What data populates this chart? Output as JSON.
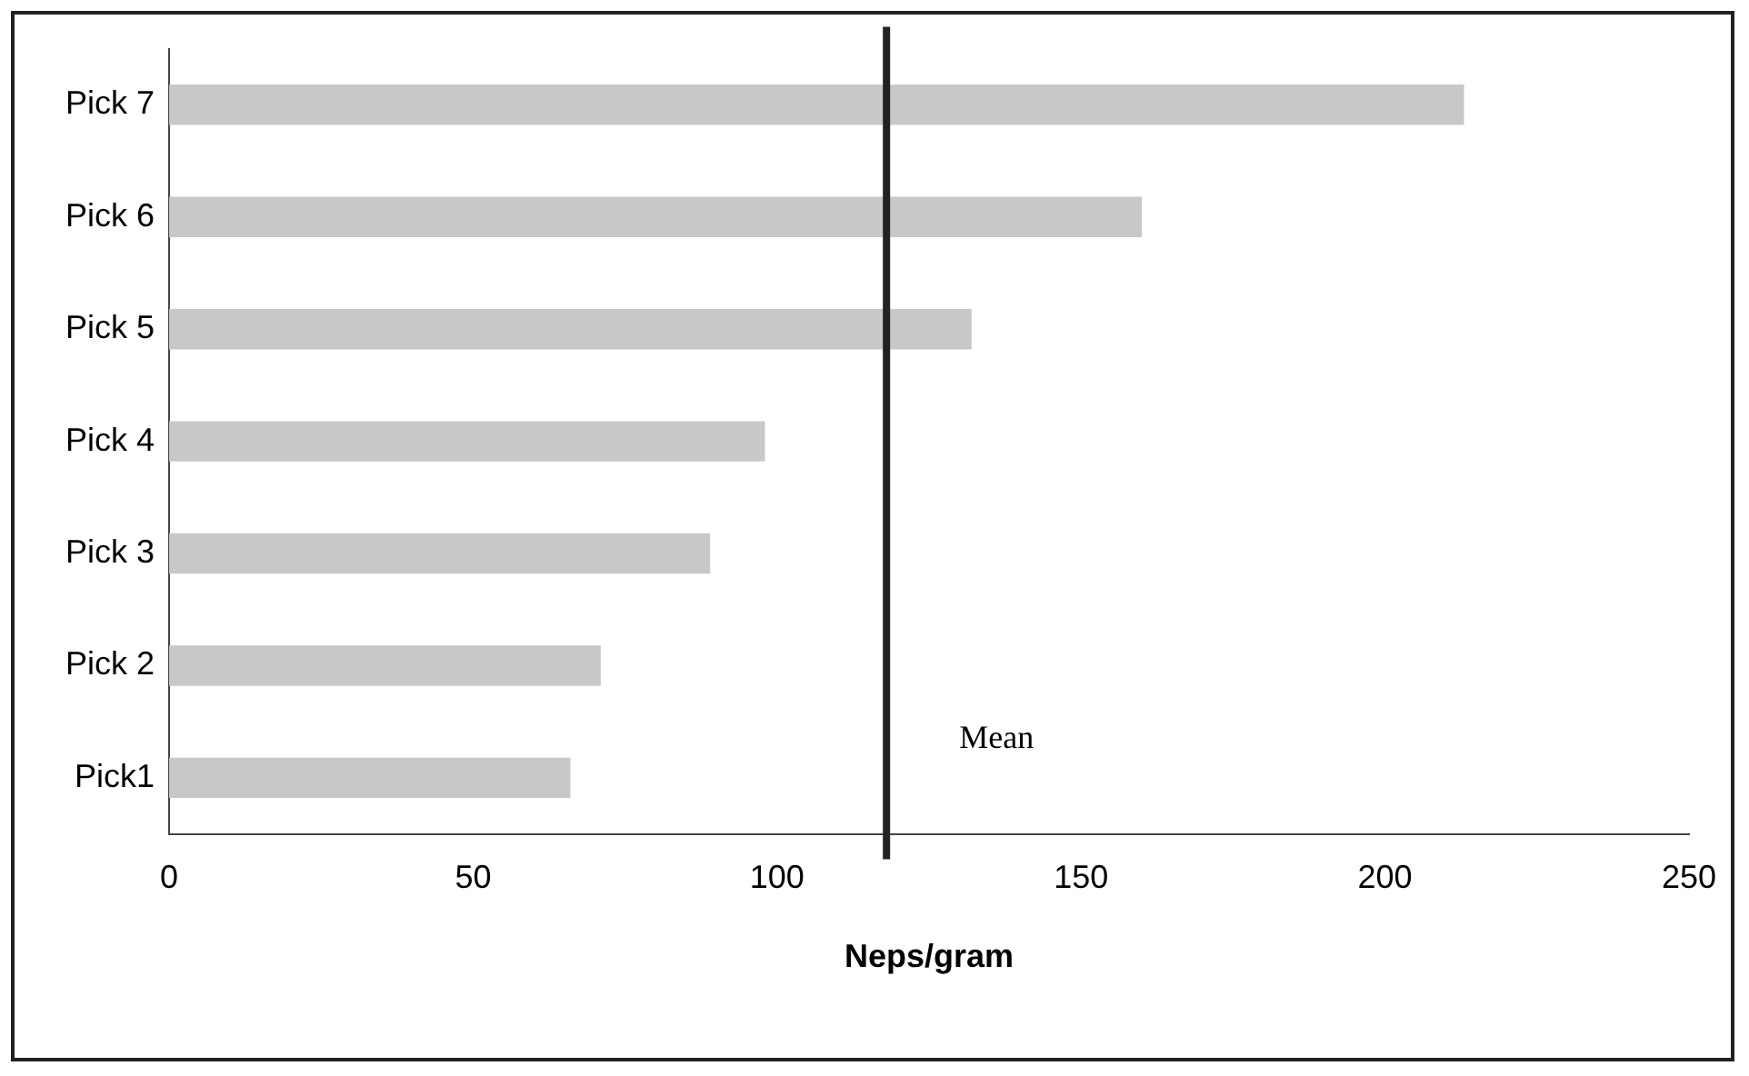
{
  "chart_data": {
    "type": "bar",
    "orientation": "horizontal",
    "xlabel": "Neps/gram",
    "categories": [
      "Pick 7",
      "Pick 6",
      "Pick 5",
      "Pick 4",
      "Pick 3",
      "Pick 2",
      "Pick1"
    ],
    "values": [
      213,
      160,
      132,
      98,
      89,
      71,
      66
    ],
    "color": "#c8c8c8",
    "xlim": [
      0,
      250
    ],
    "xticks": [
      0,
      50,
      100,
      150,
      200,
      250
    ],
    "grid": false,
    "legend": false,
    "ref_lines": [
      {
        "axis": "x",
        "value": 118,
        "label": "Mean",
        "color": "#222222"
      }
    ]
  }
}
